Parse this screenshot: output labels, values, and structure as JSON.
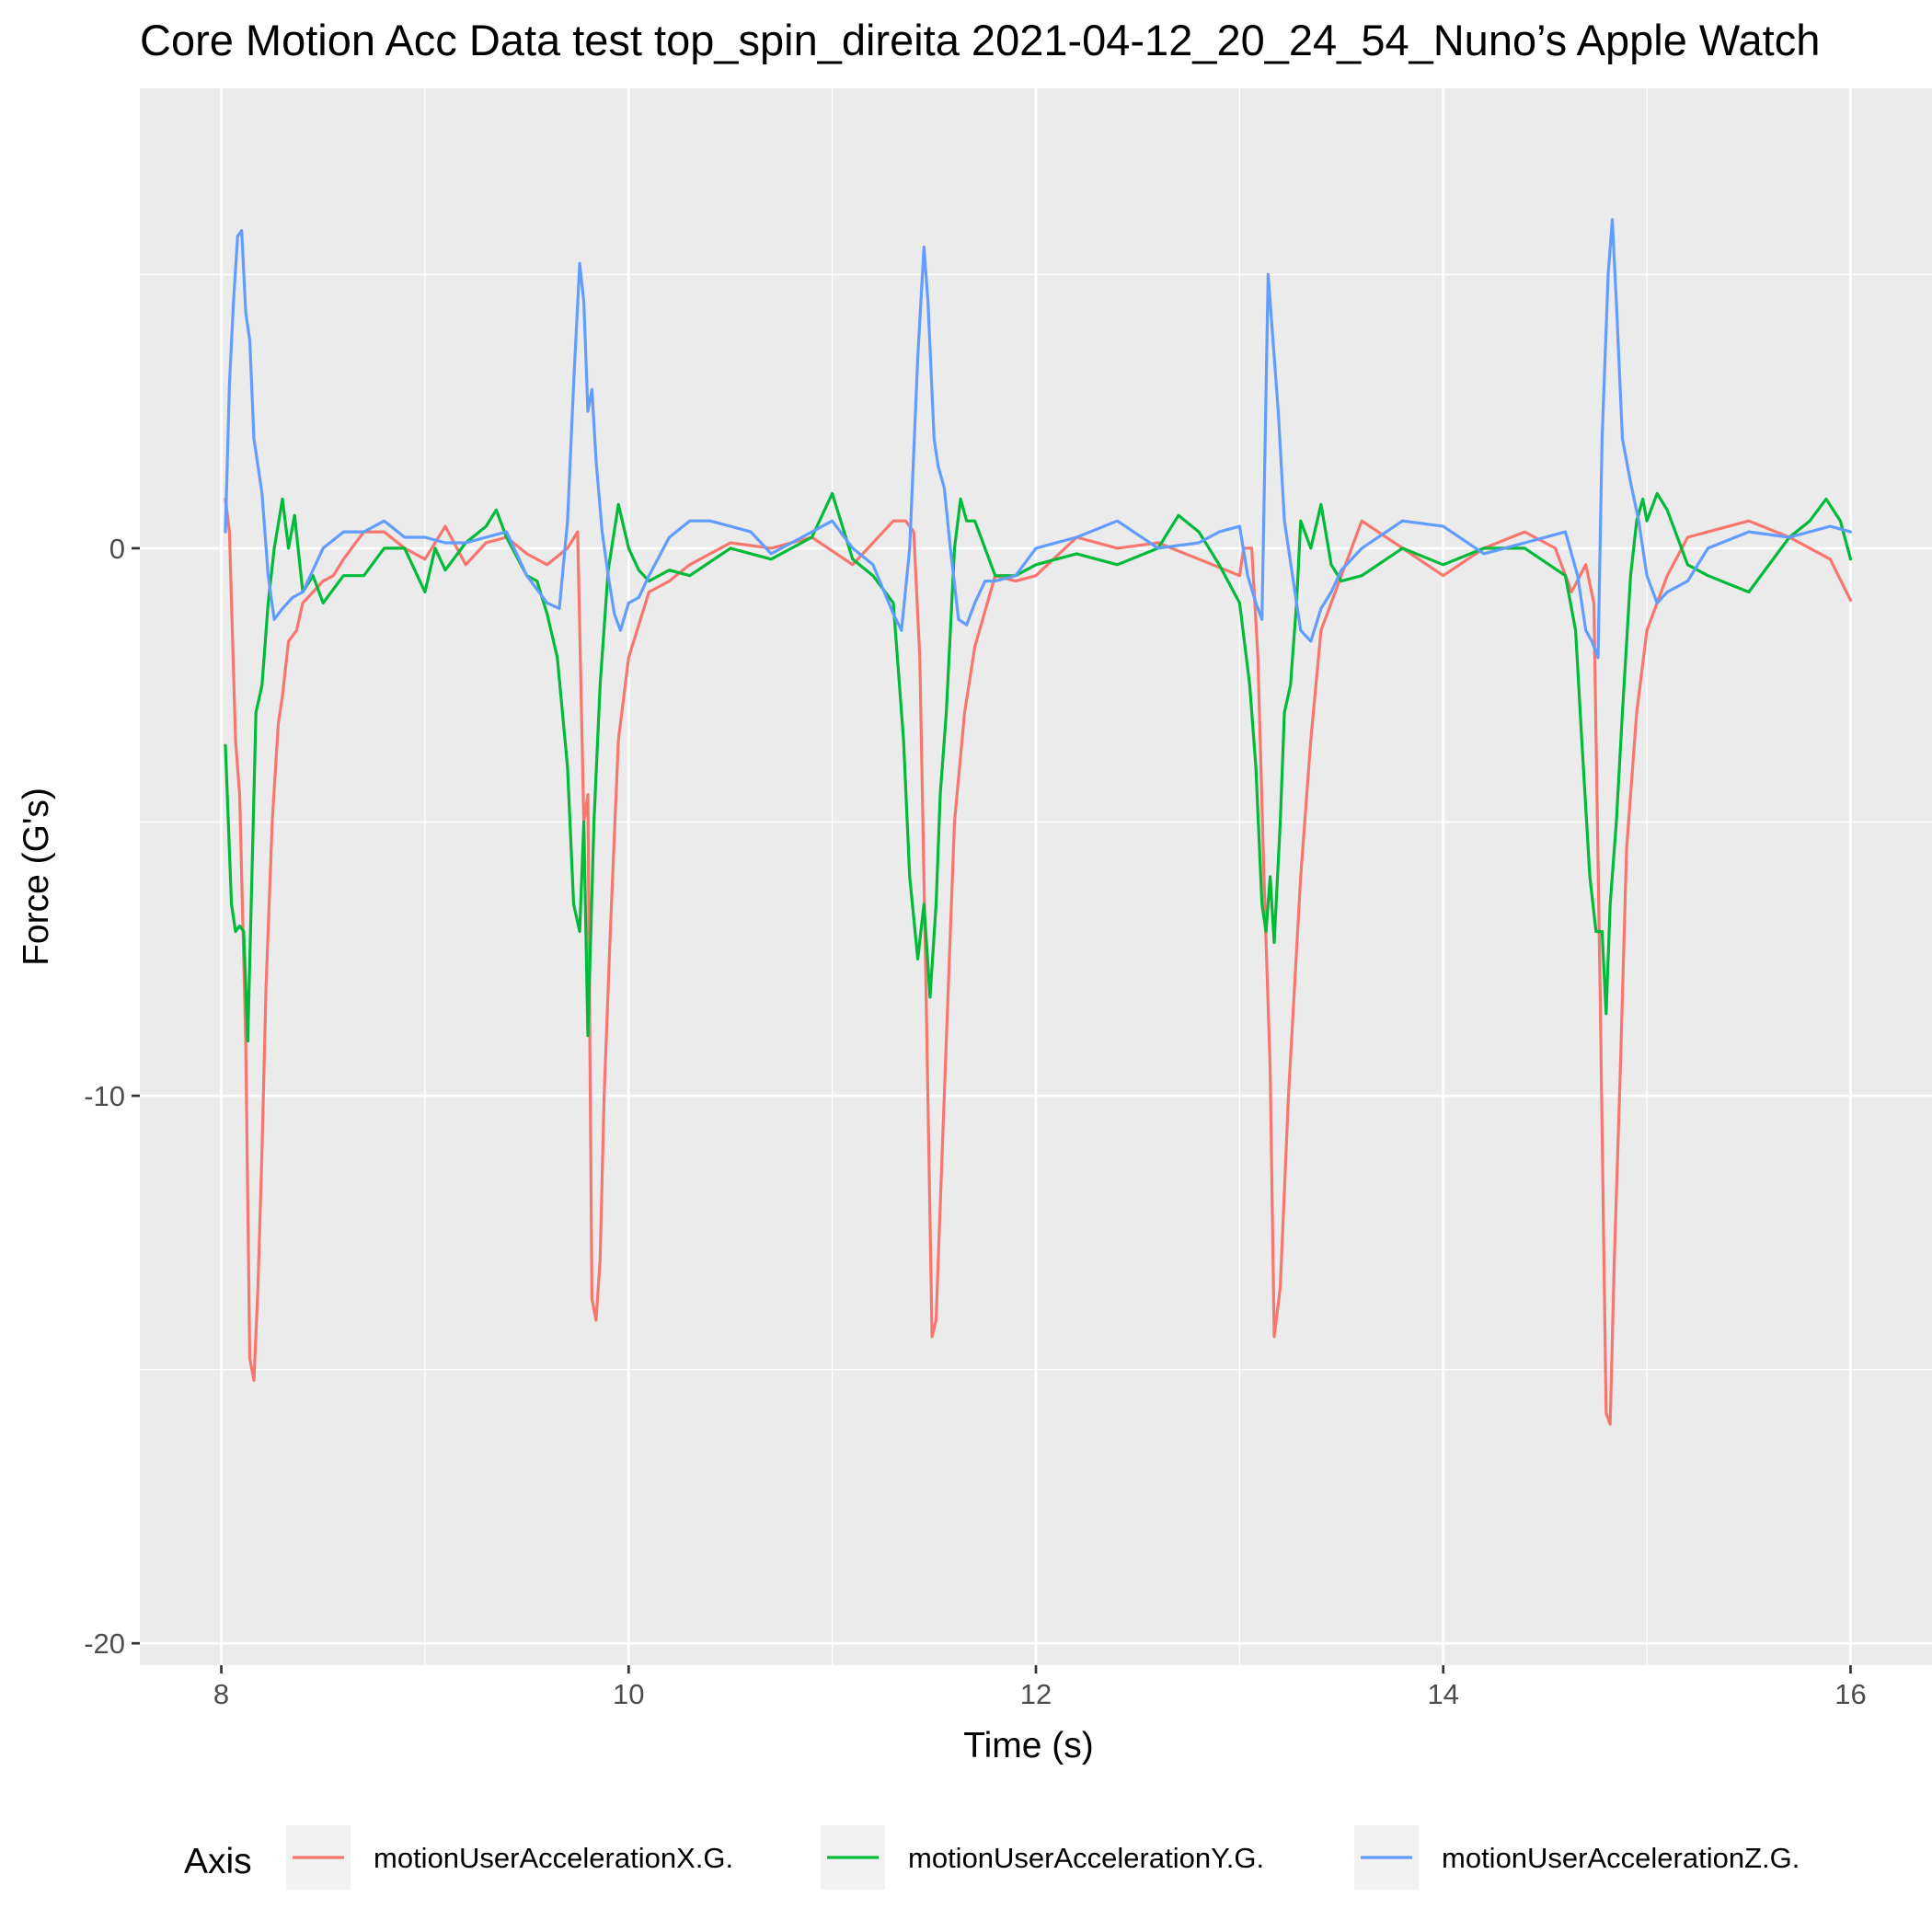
{
  "chart_data": {
    "type": "line",
    "title": "Core Motion Acc Data test top_spin_direita 2021-04-12_20_24_54_Nuno’s Apple Watch",
    "xlabel": "Time (s)",
    "ylabel": "Force (G's)",
    "xlim": [
      7.6,
      16.4
    ],
    "ylim": [
      -20.4,
      8.4
    ],
    "x_ticks": [
      8,
      10,
      12,
      14,
      16
    ],
    "x_tick_labels": [
      "8",
      "10",
      "12",
      "14",
      "16"
    ],
    "x_minor_ticks": [
      9,
      11,
      13,
      15
    ],
    "y_ticks": [
      -20,
      -10,
      0
    ],
    "y_tick_labels": [
      "-20",
      "-10",
      "0"
    ],
    "y_minor_ticks": [
      -15,
      -5,
      5
    ],
    "grid": true,
    "legend_title": "Axis",
    "legend_position": "bottom",
    "series": [
      {
        "name": "motionUserAccelerationX.G.",
        "color": "#F8766D",
        "x": [
          8.02,
          8.04,
          8.07,
          8.09,
          8.12,
          8.14,
          8.16,
          8.18,
          8.2,
          8.22,
          8.25,
          8.28,
          8.3,
          8.33,
          8.37,
          8.4,
          8.45,
          8.5,
          8.55,
          8.6,
          8.7,
          8.8,
          8.9,
          9.0,
          9.1,
          9.2,
          9.3,
          9.4,
          9.5,
          9.6,
          9.7,
          9.75,
          9.78,
          9.8,
          9.82,
          9.84,
          9.86,
          9.88,
          9.91,
          9.95,
          10.0,
          10.1,
          10.2,
          10.3,
          10.5,
          10.7,
          10.9,
          11.1,
          11.3,
          11.36,
          11.4,
          11.43,
          11.46,
          11.49,
          11.51,
          11.53,
          11.56,
          11.6,
          11.65,
          11.7,
          11.8,
          11.9,
          12.0,
          12.2,
          12.4,
          12.6,
          12.8,
          13.0,
          13.02,
          13.06,
          13.09,
          13.12,
          13.15,
          13.17,
          13.2,
          13.24,
          13.3,
          13.35,
          13.4,
          13.5,
          13.6,
          13.8,
          14.0,
          14.2,
          14.4,
          14.55,
          14.63,
          14.7,
          14.74,
          14.77,
          14.8,
          14.82,
          14.84,
          14.87,
          14.9,
          14.95,
          15.0,
          15.1,
          15.2,
          15.3,
          15.5,
          15.7,
          15.9,
          15.98,
          16.0
        ],
        "y": [
          0.9,
          0.3,
          -3.5,
          -4.5,
          -9.0,
          -14.8,
          -15.2,
          -13.5,
          -11.0,
          -8.0,
          -5.0,
          -3.2,
          -2.7,
          -1.7,
          -1.5,
          -1.0,
          -0.8,
          -0.6,
          -0.5,
          -0.2,
          0.3,
          0.3,
          0.0,
          -0.2,
          0.4,
          -0.3,
          0.1,
          0.2,
          -0.1,
          -0.3,
          0.0,
          0.3,
          -5.0,
          -4.5,
          -13.7,
          -14.1,
          -13.0,
          -10.0,
          -7.0,
          -3.5,
          -2.0,
          -0.8,
          -0.6,
          -0.3,
          0.1,
          0.0,
          0.2,
          -0.3,
          0.5,
          0.5,
          0.3,
          -2.0,
          -8.0,
          -14.4,
          -14.1,
          -12.0,
          -9.0,
          -5.0,
          -3.0,
          -1.8,
          -0.5,
          -0.6,
          -0.5,
          0.2,
          0.0,
          0.1,
          -0.2,
          -0.5,
          0.0,
          0.0,
          -2.0,
          -6.0,
          -9.5,
          -14.4,
          -13.5,
          -10.0,
          -6.0,
          -3.5,
          -1.5,
          -0.5,
          0.5,
          0.0,
          -0.5,
          0.0,
          0.3,
          0.0,
          -0.8,
          -0.3,
          -1.0,
          -8.0,
          -15.8,
          -16.0,
          -13.0,
          -9.5,
          -5.5,
          -3.0,
          -1.5,
          -0.5,
          0.2,
          0.3,
          0.5,
          0.2,
          -0.2,
          -0.8,
          -0.95
        ]
      },
      {
        "name": "motionUserAccelerationY.G.",
        "color": "#00BA38",
        "x": [
          8.02,
          8.05,
          8.07,
          8.09,
          8.11,
          8.13,
          8.15,
          8.17,
          8.2,
          8.23,
          8.26,
          8.3,
          8.33,
          8.36,
          8.4,
          8.45,
          8.5,
          8.6,
          8.7,
          8.8,
          8.9,
          9.0,
          9.05,
          9.1,
          9.2,
          9.3,
          9.35,
          9.4,
          9.5,
          9.55,
          9.6,
          9.65,
          9.7,
          9.73,
          9.76,
          9.78,
          9.8,
          9.83,
          9.86,
          9.9,
          9.95,
          10.0,
          10.05,
          10.1,
          10.2,
          10.3,
          10.5,
          10.7,
          10.9,
          11.0,
          11.05,
          11.1,
          11.2,
          11.3,
          11.35,
          11.38,
          11.42,
          11.45,
          11.48,
          11.51,
          11.53,
          11.56,
          11.6,
          11.63,
          11.66,
          11.7,
          11.8,
          11.9,
          12.0,
          12.2,
          12.4,
          12.6,
          12.7,
          12.8,
          12.9,
          13.0,
          13.05,
          13.08,
          13.11,
          13.13,
          13.15,
          13.17,
          13.2,
          13.22,
          13.25,
          13.28,
          13.3,
          13.35,
          13.4,
          13.45,
          13.5,
          13.6,
          13.8,
          14.0,
          14.2,
          14.4,
          14.6,
          14.65,
          14.68,
          14.72,
          14.75,
          14.78,
          14.8,
          14.82,
          14.85,
          14.88,
          14.92,
          14.95,
          14.98,
          15.0,
          15.05,
          15.1,
          15.2,
          15.3,
          15.5,
          15.7,
          15.8,
          15.88,
          15.95,
          16.0
        ],
        "y": [
          -3.6,
          -6.5,
          -7.0,
          -6.9,
          -7.0,
          -9.0,
          -6.0,
          -3.0,
          -2.5,
          -1.0,
          0.0,
          0.9,
          0.0,
          0.6,
          -0.8,
          -0.5,
          -1.0,
          -0.5,
          -0.5,
          0.0,
          0.0,
          -0.8,
          0.0,
          -0.4,
          0.1,
          0.4,
          0.7,
          0.2,
          -0.5,
          -0.6,
          -1.2,
          -2.0,
          -4.0,
          -6.5,
          -7.0,
          -5.0,
          -8.9,
          -5.0,
          -2.5,
          -0.4,
          0.8,
          0.0,
          -0.4,
          -0.6,
          -0.4,
          -0.5,
          0.0,
          -0.2,
          0.2,
          1.0,
          0.4,
          -0.2,
          -0.5,
          -1.0,
          -3.5,
          -6.0,
          -7.5,
          -6.5,
          -8.2,
          -6.5,
          -4.5,
          -3.0,
          0.0,
          0.9,
          0.5,
          0.5,
          -0.5,
          -0.5,
          -0.3,
          -0.1,
          -0.3,
          0.0,
          0.6,
          0.3,
          -0.3,
          -1.0,
          -2.5,
          -4.0,
          -6.5,
          -7.0,
          -6.0,
          -7.2,
          -5.0,
          -3.0,
          -2.5,
          -1.0,
          0.5,
          0.0,
          0.8,
          -0.3,
          -0.6,
          -0.5,
          0.0,
          -0.3,
          0.0,
          0.0,
          -0.5,
          -1.5,
          -3.5,
          -6.0,
          -7.0,
          -7.0,
          -8.5,
          -6.5,
          -5.0,
          -3.0,
          -0.5,
          0.5,
          0.9,
          0.5,
          1.0,
          0.7,
          -0.3,
          -0.5,
          -0.8,
          0.2,
          0.5,
          0.9,
          0.5,
          -0.2
        ]
      },
      {
        "name": "motionUserAccelerationZ.G.",
        "color": "#619CFF",
        "x": [
          8.02,
          8.04,
          8.06,
          8.08,
          8.1,
          8.12,
          8.14,
          8.16,
          8.18,
          8.2,
          8.23,
          8.26,
          8.3,
          8.35,
          8.4,
          8.5,
          8.6,
          8.7,
          8.8,
          8.9,
          9.0,
          9.1,
          9.2,
          9.3,
          9.4,
          9.5,
          9.6,
          9.66,
          9.7,
          9.73,
          9.76,
          9.78,
          9.8,
          9.82,
          9.84,
          9.87,
          9.9,
          9.93,
          9.96,
          10.0,
          10.05,
          10.1,
          10.2,
          10.3,
          10.4,
          10.5,
          10.6,
          10.7,
          10.8,
          10.9,
          11.0,
          11.1,
          11.2,
          11.3,
          11.34,
          11.38,
          11.42,
          11.45,
          11.47,
          11.5,
          11.52,
          11.55,
          11.58,
          11.62,
          11.66,
          11.7,
          11.75,
          11.8,
          11.9,
          12.0,
          12.2,
          12.4,
          12.6,
          12.8,
          12.9,
          13.0,
          13.04,
          13.08,
          13.11,
          13.14,
          13.16,
          13.19,
          13.22,
          13.26,
          13.3,
          13.35,
          13.4,
          13.45,
          13.5,
          13.6,
          13.8,
          14.0,
          14.2,
          14.4,
          14.6,
          14.66,
          14.7,
          14.73,
          14.76,
          14.78,
          14.81,
          14.83,
          14.85,
          14.88,
          14.92,
          14.96,
          15.0,
          15.05,
          15.1,
          15.2,
          15.3,
          15.5,
          15.7,
          15.9,
          16.0
        ],
        "y": [
          0.3,
          3.0,
          4.5,
          5.7,
          5.8,
          4.3,
          3.8,
          2.0,
          1.5,
          1.0,
          -0.5,
          -1.3,
          -1.1,
          -0.9,
          -0.8,
          0.0,
          0.3,
          0.3,
          0.5,
          0.2,
          0.2,
          0.1,
          0.1,
          0.2,
          0.3,
          -0.5,
          -1.0,
          -1.1,
          0.5,
          3.0,
          5.2,
          4.5,
          2.5,
          2.9,
          1.6,
          0.3,
          -0.5,
          -1.2,
          -1.5,
          -1.0,
          -0.9,
          -0.5,
          0.2,
          0.5,
          0.5,
          0.4,
          0.3,
          -0.1,
          0.1,
          0.3,
          0.5,
          0.0,
          -0.3,
          -1.2,
          -1.5,
          0.0,
          3.5,
          5.5,
          4.5,
          2.0,
          1.5,
          1.1,
          0.0,
          -1.3,
          -1.4,
          -1.0,
          -0.6,
          -0.6,
          -0.5,
          0.0,
          0.2,
          0.5,
          0.0,
          0.1,
          0.3,
          0.4,
          -0.5,
          -1.0,
          -1.3,
          5.0,
          4.0,
          2.5,
          0.5,
          -0.5,
          -1.5,
          -1.7,
          -1.1,
          -0.8,
          -0.4,
          0.0,
          0.5,
          0.4,
          -0.1,
          0.1,
          0.3,
          -0.5,
          -1.5,
          -1.7,
          -2.0,
          2.0,
          5.0,
          6.0,
          4.5,
          2.0,
          1.2,
          0.5,
          -0.5,
          -1.0,
          -0.8,
          -0.6,
          0.0,
          0.3,
          0.2,
          0.4,
          0.3
        ]
      }
    ]
  }
}
